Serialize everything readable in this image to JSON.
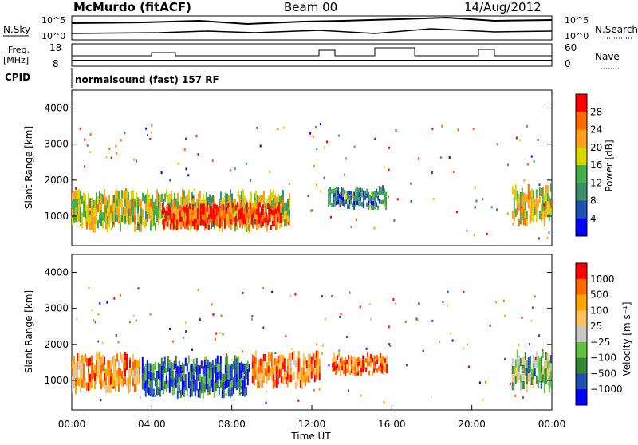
{
  "header": {
    "station": "McMurdo (fitACF)",
    "beam": "Beam 00",
    "date": "14/Aug/2012",
    "cpid_label": "CPID",
    "cpid_value": "normalsound (fast) 157 RF"
  },
  "noise_panel": {
    "left_label": "N.Sky",
    "right_label": "N.Search",
    "left_ticks": [
      "10^5",
      "10^0"
    ],
    "right_ticks": [
      "10^5",
      "10^0"
    ]
  },
  "freq_panel": {
    "left_label_line1": "Freq.",
    "left_label_line2": "[MHz]",
    "right_label": "Nave",
    "left_ticks": [
      "18",
      "8"
    ],
    "right_ticks": [
      "60",
      "0"
    ]
  },
  "colors": {
    "power_scale": [
      "#0000ff",
      "#1f4fb0",
      "#3a8f6a",
      "#43b04a",
      "#d8d800",
      "#ffa020",
      "#ff6a00",
      "#ff0000"
    ],
    "velocity_scale": [
      "#ff0000",
      "#ff6a00",
      "#ffa500",
      "#ffc060",
      "#c8c8c8",
      "#60c040",
      "#308830",
      "#1f4fb0",
      "#0000ff"
    ]
  },
  "chart_data": [
    {
      "type": "heatmap",
      "panel": "power",
      "ylabel": "Slant Range [km]",
      "ylim": [
        180,
        4500
      ],
      "xlim": [
        0,
        24
      ],
      "yticks": [
        "1000",
        "2000",
        "3000",
        "4000"
      ],
      "colorbar": {
        "label": "Power [dB]",
        "ticks": [
          "4",
          "8",
          "12",
          "16",
          "20",
          "24",
          "28"
        ],
        "range": [
          0,
          32
        ]
      },
      "series": [
        {
          "x_start": 0.0,
          "x_end": 11.0,
          "range_center_km": 1150,
          "range_width_km": 900,
          "level": 0.55
        },
        {
          "x_start": 4.5,
          "x_end": 10.5,
          "range_center_km": 1000,
          "range_width_km": 600,
          "level": 0.9
        },
        {
          "x_start": 12.8,
          "x_end": 15.8,
          "range_center_km": 1500,
          "range_width_km": 500,
          "level": 0.3
        },
        {
          "x_start": 22.0,
          "x_end": 24.0,
          "range_center_km": 1300,
          "range_width_km": 900,
          "level": 0.6
        }
      ]
    },
    {
      "type": "heatmap",
      "panel": "velocity",
      "ylabel": "Slant Range [km]",
      "xlabel": "Time UT",
      "ylim": [
        180,
        4500
      ],
      "xlim": [
        0,
        24
      ],
      "xticks": [
        "00:00",
        "04:00",
        "08:00",
        "12:00",
        "16:00",
        "20:00",
        "00:00"
      ],
      "yticks": [
        "1000",
        "2000",
        "3000",
        "4000"
      ],
      "colorbar": {
        "label": "Velocity [m s⁻¹]",
        "ticks": [
          "1000",
          "500",
          "100",
          "25",
          "−25",
          "−100",
          "−500",
          "−1000"
        ]
      },
      "series": [
        {
          "x_start": 0.0,
          "x_end": 3.5,
          "range_center_km": 1200,
          "range_width_km": 900,
          "level": 0.3
        },
        {
          "x_start": 3.5,
          "x_end": 9.0,
          "range_center_km": 1100,
          "range_width_km": 900,
          "level": 0.8
        },
        {
          "x_start": 9.0,
          "x_end": 12.5,
          "range_center_km": 1300,
          "range_width_km": 800,
          "level": 0.25
        },
        {
          "x_start": 13.0,
          "x_end": 15.8,
          "range_center_km": 1450,
          "range_width_km": 500,
          "level": 0.2
        },
        {
          "x_start": 22.0,
          "x_end": 24.0,
          "range_center_km": 1250,
          "range_width_km": 900,
          "level": 0.6
        }
      ]
    }
  ]
}
